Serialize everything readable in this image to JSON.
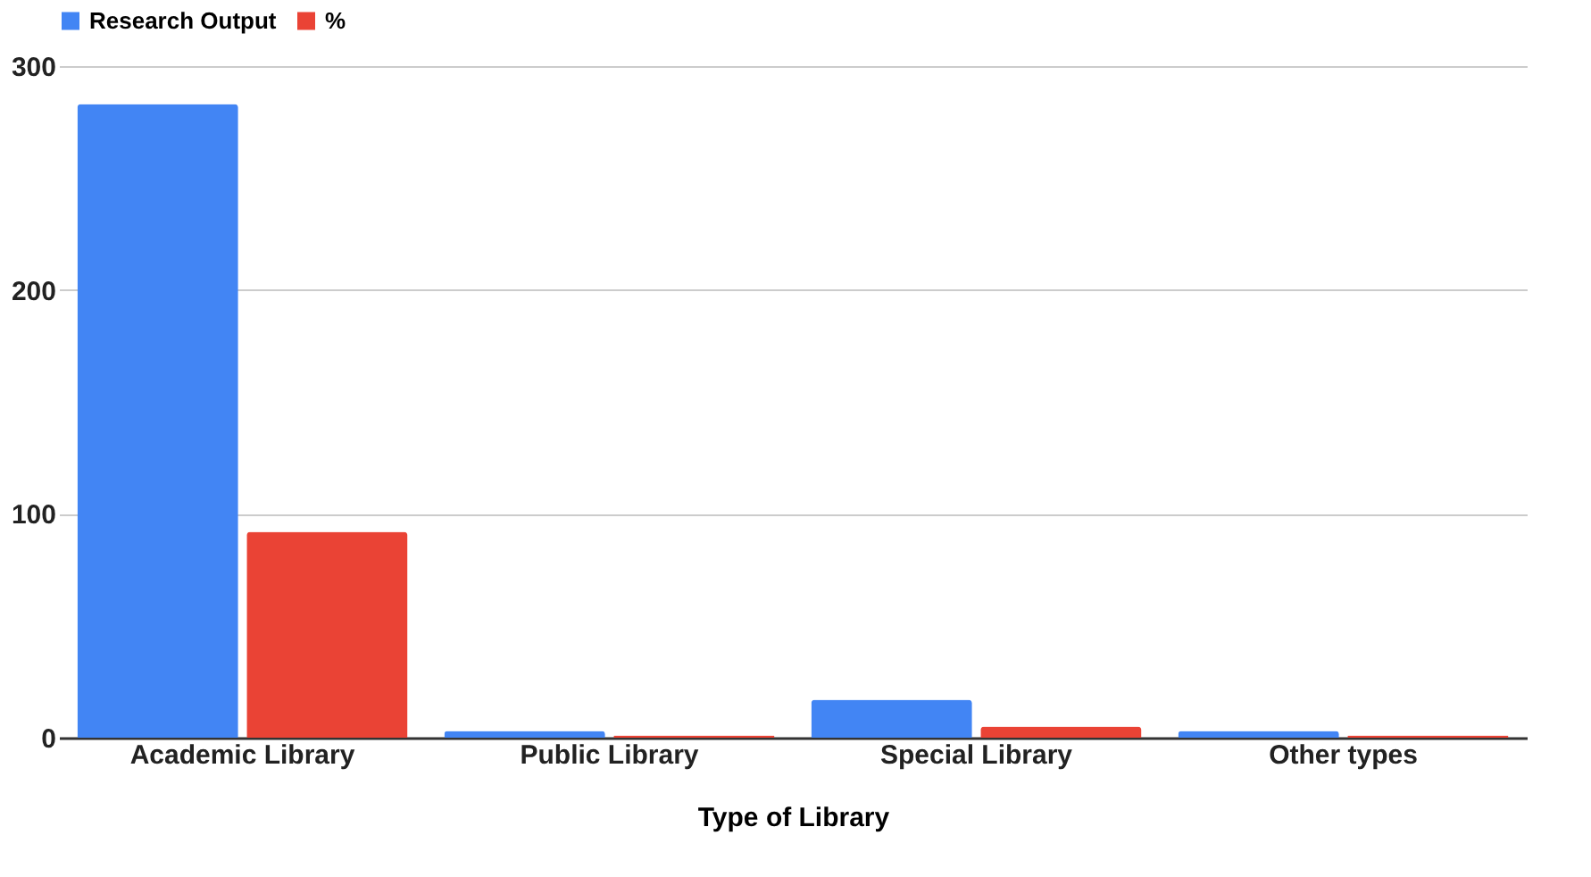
{
  "chart_data": {
    "type": "bar",
    "xlabel": "Type of Library",
    "categories": [
      "Academic Library",
      "Public Library",
      "Special Library",
      "Other types"
    ],
    "series": [
      {
        "name": "Research Output",
        "color": "#4285f4",
        "values": [
          283,
          3,
          17,
          3
        ]
      },
      {
        "name": "%",
        "color": "#ea4335",
        "values": [
          92,
          1,
          5,
          1
        ]
      }
    ],
    "ylim": [
      0,
      300
    ],
    "yticks": [
      0,
      100,
      200,
      300
    ],
    "grid": "y",
    "legend": "top"
  }
}
